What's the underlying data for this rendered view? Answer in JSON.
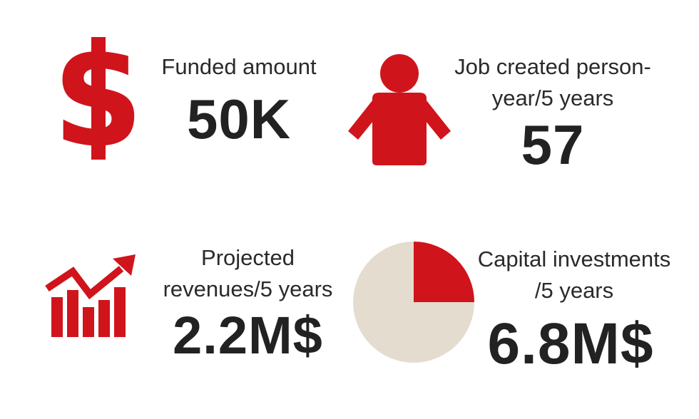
{
  "colors": {
    "accent": "#d0141c",
    "pie_rest": "#e4ddcf",
    "text": "#222222"
  },
  "stats": [
    {
      "icon": "dollar-icon",
      "label_lines": [
        "Funded amount"
      ],
      "value": "50K"
    },
    {
      "icon": "person-icon",
      "label_lines": [
        "Job created person-",
        "year/5 years"
      ],
      "value": "57"
    },
    {
      "icon": "rising-chart-icon",
      "label_lines": [
        "Projected",
        "revenues/5 years"
      ],
      "value": "2.2M$"
    },
    {
      "icon": "pie-chart-icon",
      "label_lines": [
        "Capital investments",
        "/5 years"
      ],
      "value": "6.8M$",
      "pie_highlight_fraction": 0.25
    }
  ]
}
